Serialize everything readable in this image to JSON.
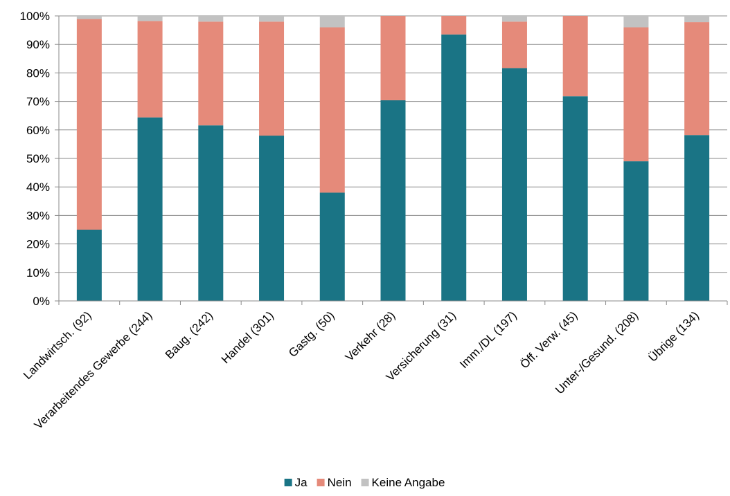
{
  "chart_data": {
    "type": "bar",
    "stacked": true,
    "title": "",
    "xlabel": "",
    "ylabel": "",
    "ylim": [
      0,
      100
    ],
    "y_ticks": [
      "0%",
      "10%",
      "20%",
      "30%",
      "40%",
      "50%",
      "60%",
      "70%",
      "80%",
      "90%",
      "100%"
    ],
    "grid": "horizontal",
    "legend_position": "bottom",
    "categories": [
      "Landwirtsch. (92)",
      "Verarbeitendes Gewerbe (244)",
      "Baug. (242)",
      "Handel (301)",
      "Gastg. (50)",
      "Verkehr (28)",
      "Versicherung (31)",
      "Imm./DL (197)",
      "Öff. Verw. (45)",
      "Unter-/Gesund. (208)",
      "Übrige (134)"
    ],
    "series": [
      {
        "name": "Ja",
        "color": "#1a7485",
        "values": [
          25,
          64.4,
          61.6,
          58,
          38,
          70.4,
          93.5,
          81.7,
          71.8,
          49,
          58.2
        ]
      },
      {
        "name": "Nein",
        "color": "#e58a7a",
        "values": [
          73.9,
          33.8,
          36.4,
          40,
          58,
          29.6,
          6.5,
          16.3,
          28.2,
          47,
          39.6
        ]
      },
      {
        "name": "Keine Angabe",
        "color": "#c2c2c2",
        "values": [
          1.1,
          1.8,
          2,
          2,
          4,
          0,
          0,
          2,
          0,
          4,
          2.2
        ]
      }
    ]
  }
}
